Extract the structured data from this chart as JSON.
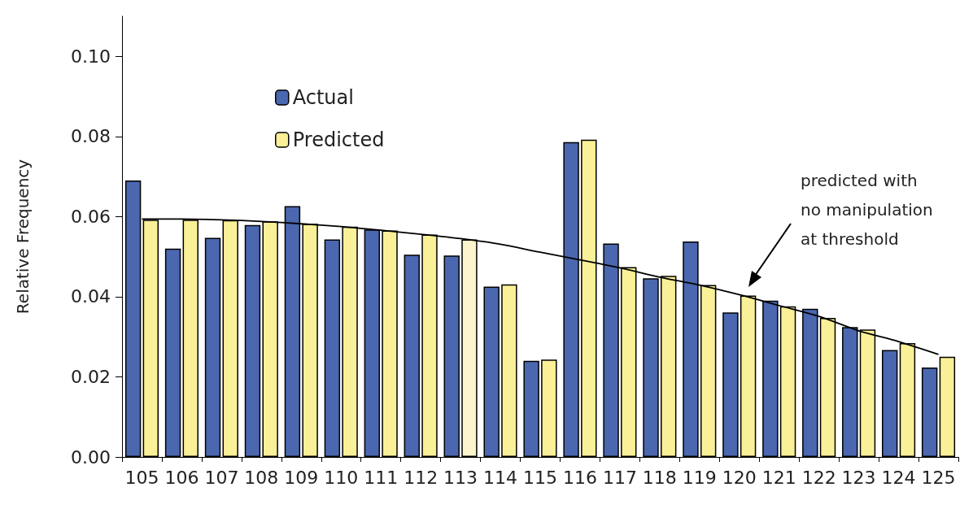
{
  "chart_data": {
    "type": "bar",
    "ylabel": "Relative Frequency",
    "categories": [
      "105",
      "106",
      "107",
      "108",
      "109",
      "110",
      "111",
      "112",
      "113",
      "114",
      "115",
      "116",
      "117",
      "118",
      "119",
      "120",
      "121",
      "122",
      "123",
      "124",
      "125"
    ],
    "series": [
      {
        "name": "Actual",
        "color": "#4a67b0",
        "values": [
          0.069,
          0.052,
          0.0547,
          0.0579,
          0.0626,
          0.0543,
          0.0568,
          0.0505,
          0.0503,
          0.0425,
          0.024,
          0.0786,
          0.0533,
          0.0446,
          0.0538,
          0.0361,
          0.039,
          0.037,
          0.0324,
          0.0267,
          0.0223
        ]
      },
      {
        "name": "Predicted",
        "color": "#f9f097",
        "colors": [
          "#f9f097",
          "#f9f097",
          "#f9f097",
          "#f9f097",
          "#f9f097",
          "#f9f097",
          "#f9f097",
          "#f9f097",
          "#fbf4cc",
          "#f9f097",
          "#f9f097",
          "#f9f097",
          "#f9f097",
          "#f9f097",
          "#f9f097",
          "#f9f097",
          "#f9f097",
          "#f9f097",
          "#f9f097",
          "#f9f097",
          "#f9f097"
        ],
        "values": [
          0.0592,
          0.0592,
          0.0591,
          0.0588,
          0.0582,
          0.0575,
          0.0565,
          0.0555,
          0.0543,
          0.0431,
          0.0243,
          0.0792,
          0.0474,
          0.0452,
          0.0429,
          0.0403,
          0.0376,
          0.0347,
          0.0318,
          0.0284,
          0.025
        ]
      },
      {
        "type": "line",
        "color": "#000000",
        "marker": "none",
        "x": [
          "105",
          "106",
          "107",
          "108",
          "109",
          "110",
          "111",
          "112",
          "113",
          "114",
          "115",
          "116",
          "117",
          "118",
          "119",
          "120",
          "121",
          "122",
          "123",
          "124",
          "125"
        ],
        "values": [
          0.0594,
          0.0594,
          0.0592,
          0.0588,
          0.0582,
          0.0575,
          0.0566,
          0.0556,
          0.0545,
          0.0531,
          0.0511,
          0.0492,
          0.0472,
          0.0449,
          0.0429,
          0.0405,
          0.0378,
          0.0351,
          0.0315,
          0.0288,
          0.0256
        ]
      }
    ],
    "annotations": [
      "predicted with\nno manipulation\nat threshold"
    ],
    "ylim": [
      0,
      0.11
    ],
    "yticks": [
      {
        "value": 0,
        "label": "0.00"
      },
      {
        "value": 0.02,
        "label": "0.02"
      },
      {
        "value": 0.04,
        "label": "0.04"
      },
      {
        "value": 0.06,
        "label": "0.06"
      },
      {
        "value": 0.08,
        "label": "0.08"
      },
      {
        "value": 0.1,
        "label": "0.10"
      }
    ],
    "grid": false,
    "legend": "top left"
  }
}
